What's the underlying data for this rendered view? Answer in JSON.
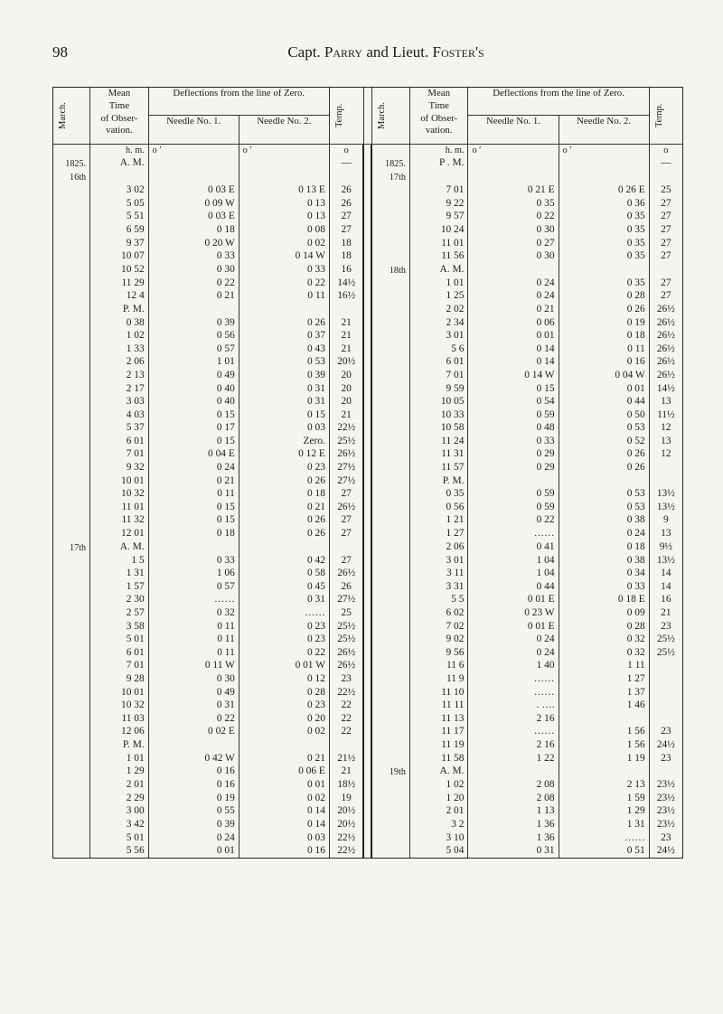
{
  "page_number": "98",
  "running_head": "Capt. PARRY and Lieut. FOSTER's",
  "headers": {
    "march": "March.",
    "mean_time": [
      "Mean",
      "Time",
      "of Obser-",
      "vation."
    ],
    "deflections": "Deflections from the line of Zero.",
    "needle1": "Needle No. 1.",
    "needle2": "Needle No. 2.",
    "temp": "Temp."
  },
  "unit_row": {
    "hm": "h. m.",
    "deg": "o ′",
    "t": "o"
  },
  "left": [
    {
      "march": "1825.",
      "time": "A. M.",
      "n1": "",
      "n2": "",
      "t": "—"
    },
    {
      "march": "16th",
      "time": "",
      "n1": "",
      "n2": "",
      "t": ""
    },
    {
      "time": "3 02",
      "n1": "0 03 E",
      "n2": "0 13 E",
      "t": "26"
    },
    {
      "time": "5 05",
      "n1": "0 09 W",
      "n2": "0 13",
      "t": "26"
    },
    {
      "time": "5 51",
      "n1": "0 03 E",
      "n2": "0 13",
      "t": "27"
    },
    {
      "time": "6 59",
      "n1": "0 18",
      "n2": "0 08",
      "t": "27"
    },
    {
      "time": "9 37",
      "n1": "0 20 W",
      "n2": "0 02",
      "t": "18"
    },
    {
      "time": "10 07",
      "n1": "0 33",
      "n2": "0 14 W",
      "t": "18"
    },
    {
      "time": "10 52",
      "n1": "0 30",
      "n2": "0 33",
      "t": "16"
    },
    {
      "time": "11 29",
      "n1": "0 22",
      "n2": "0 22",
      "t": "14½"
    },
    {
      "time": "12  4",
      "n1": "0 21",
      "n2": "0 11",
      "t": "16½"
    },
    {
      "time": "P. M.",
      "n1": "",
      "n2": "",
      "t": ""
    },
    {
      "time": "0 38",
      "n1": "0 39",
      "n2": "0 26",
      "t": "21"
    },
    {
      "time": "1 02",
      "n1": "0 56",
      "n2": "0 37",
      "t": "21"
    },
    {
      "time": "1 33",
      "n1": "0 57",
      "n2": "0 43",
      "t": "21"
    },
    {
      "time": "2 06",
      "n1": "1 01",
      "n2": "0 53",
      "t": "20½"
    },
    {
      "time": "2 13",
      "n1": "0 49",
      "n2": "0 39",
      "t": "20"
    },
    {
      "time": "2 17",
      "n1": "0 40",
      "n2": "0 31",
      "t": "20"
    },
    {
      "time": "3 03",
      "n1": "0 40",
      "n2": "0 31",
      "t": "20"
    },
    {
      "time": "4 03",
      "n1": "0 15",
      "n2": "0 15",
      "t": "21"
    },
    {
      "time": "5 37",
      "n1": "0 17",
      "n2": "0 03",
      "t": "22½"
    },
    {
      "time": "6 01",
      "n1": "0 15",
      "n2": "Zero.",
      "t": "25½"
    },
    {
      "time": "7 01",
      "n1": "0 04 E",
      "n2": "0 12 E",
      "t": "26½"
    },
    {
      "time": "9 32",
      "n1": "0 24",
      "n2": "0 23",
      "t": "27½"
    },
    {
      "time": "10 01",
      "n1": "0 21",
      "n2": "0 26",
      "t": "27½"
    },
    {
      "time": "10 32",
      "n1": "0 11",
      "n2": "0 18",
      "t": "27"
    },
    {
      "time": "11 01",
      "n1": "0 15",
      "n2": "0 21",
      "t": "26½"
    },
    {
      "time": "11 32",
      "n1": "0 15",
      "n2": "0 26",
      "t": "27"
    },
    {
      "time": "12 01",
      "n1": "0 18",
      "n2": "0 26",
      "t": "27"
    },
    {
      "march": "17th",
      "time": "A. M.",
      "n1": "",
      "n2": "",
      "t": ""
    },
    {
      "time": "1  5",
      "n1": "0 33",
      "n2": "0 42",
      "t": "27"
    },
    {
      "time": "1 31",
      "n1": "1 06",
      "n2": "0 58",
      "t": "26½"
    },
    {
      "time": "1 57",
      "n1": "0 57",
      "n2": "0 45",
      "t": "26"
    },
    {
      "time": "2 30",
      "n1": "……",
      "n2": "0 31",
      "t": "27½"
    },
    {
      "time": "2 57",
      "n1": "0 32",
      "n2": "……",
      "t": "25"
    },
    {
      "time": "3 58",
      "n1": "0 11",
      "n2": "0 23",
      "t": "25½"
    },
    {
      "time": "5 01",
      "n1": "0 11",
      "n2": "0 23",
      "t": "25½"
    },
    {
      "time": "6 01",
      "n1": "0 11",
      "n2": "0 22",
      "t": "26½"
    },
    {
      "time": "7 01",
      "n1": "0 11 W",
      "n2": "0 01 W",
      "t": "26½"
    },
    {
      "time": "9 28",
      "n1": "0 30",
      "n2": "0 12",
      "t": "23"
    },
    {
      "time": "10 01",
      "n1": "0 49",
      "n2": "0 28",
      "t": "22½"
    },
    {
      "time": "10 32",
      "n1": "0 31",
      "n2": "0 23",
      "t": "22"
    },
    {
      "time": "11 03",
      "n1": "0 22",
      "n2": "0 20",
      "t": "22"
    },
    {
      "time": "12 06",
      "n1": "0 02 E",
      "n2": "0 02",
      "t": "22"
    },
    {
      "time": "P. M.",
      "n1": "",
      "n2": "",
      "t": ""
    },
    {
      "time": "1 01",
      "n1": "0 42 W",
      "n2": "0 21",
      "t": "21½"
    },
    {
      "time": "1 29",
      "n1": "0 16",
      "n2": "0 06 E",
      "t": "21"
    },
    {
      "time": "2 01",
      "n1": "0 16",
      "n2": "0 01",
      "t": "18½"
    },
    {
      "time": "2 29",
      "n1": "0 19",
      "n2": "0 02",
      "t": "19"
    },
    {
      "time": "3 00",
      "n1": "0 55",
      "n2": "0 14",
      "t": "20½"
    },
    {
      "time": "3 42",
      "n1": "0 39",
      "n2": "0 14",
      "t": "20½"
    },
    {
      "time": "5 01",
      "n1": "0 24",
      "n2": "0 03",
      "t": "22½"
    },
    {
      "time": "5 56",
      "n1": "0 01",
      "n2": "0 16",
      "t": "22½"
    }
  ],
  "right": [
    {
      "march": "1825.",
      "time": "P . M.",
      "n1": "",
      "n2": "",
      "t": "—"
    },
    {
      "march": "17th",
      "time": "",
      "n1": "",
      "n2": "",
      "t": ""
    },
    {
      "time": "7 01",
      "n1": "0 21 E",
      "n2": "0 26 E",
      "t": "25"
    },
    {
      "time": "9 22",
      "n1": "0 35",
      "n2": "0 36",
      "t": "27"
    },
    {
      "time": "9 57",
      "n1": "0 22",
      "n2": "0 35",
      "t": "27"
    },
    {
      "time": "10 24",
      "n1": "0 30",
      "n2": "0 35",
      "t": "27"
    },
    {
      "time": "11 01",
      "n1": "0 27",
      "n2": "0 35",
      "t": "27"
    },
    {
      "time": "11 56",
      "n1": "0 30",
      "n2": "0 35",
      "t": "27"
    },
    {
      "march": "18th",
      "time": "A. M.",
      "n1": "",
      "n2": "",
      "t": ""
    },
    {
      "time": "1 01",
      "n1": "0 24",
      "n2": "0 35",
      "t": "27"
    },
    {
      "time": "1 25",
      "n1": "0 24",
      "n2": "0 28",
      "t": "27"
    },
    {
      "time": "2 02",
      "n1": "0 21",
      "n2": "0 26",
      "t": "26½"
    },
    {
      "time": "2 34",
      "n1": "0 06",
      "n2": "0 19",
      "t": "26½"
    },
    {
      "time": "3 01",
      "n1": "0 01",
      "n2": "0 18",
      "t": "26½"
    },
    {
      "time": "5  6",
      "n1": "0 14",
      "n2": "0 11",
      "t": "26½"
    },
    {
      "time": "6 01",
      "n1": "0 14",
      "n2": "0 16",
      "t": "26½"
    },
    {
      "time": "7 01",
      "n1": "0 14 W",
      "n2": "0 04 W",
      "t": "26½"
    },
    {
      "time": "9 59",
      "n1": "0 15",
      "n2": "0 01",
      "t": "14½"
    },
    {
      "time": "10 05",
      "n1": "0 54",
      "n2": "0 44",
      "t": "13"
    },
    {
      "time": "10 33",
      "n1": "0 59",
      "n2": "0 50",
      "t": "11½"
    },
    {
      "time": "10 58",
      "n1": "0 48",
      "n2": "0 53",
      "t": "12"
    },
    {
      "time": "11 24",
      "n1": "0 33",
      "n2": "0 52",
      "t": "13"
    },
    {
      "time": "11 31",
      "n1": "0 29",
      "n2": "0 26",
      "t": "12"
    },
    {
      "time": "11 57",
      "n1": "0 29",
      "n2": "0 26",
      "t": ""
    },
    {
      "time": "P. M.",
      "n1": "",
      "n2": "",
      "t": ""
    },
    {
      "time": "0 35",
      "n1": "0 59",
      "n2": "0 53",
      "t": "13½"
    },
    {
      "time": "0 56",
      "n1": "0 59",
      "n2": "0 53",
      "t": "13½"
    },
    {
      "time": "1 21",
      "n1": "0 22",
      "n2": "0 38",
      "t": "9"
    },
    {
      "time": "1 27",
      "n1": "……",
      "n2": "0 24",
      "t": "13"
    },
    {
      "time": "2 06",
      "n1": "0 41",
      "n2": "0 18",
      "t": "9½"
    },
    {
      "time": "3 01",
      "n1": "1 04",
      "n2": "0 38",
      "t": "13½"
    },
    {
      "time": "3 11",
      "n1": "1 04",
      "n2": "0 34",
      "t": "14"
    },
    {
      "time": "3 31",
      "n1": "0 44",
      "n2": "0 33",
      "t": "14"
    },
    {
      "time": "5  5",
      "n1": "0 01 E",
      "n2": "0 18 E",
      "t": "16"
    },
    {
      "time": "6 02",
      "n1": "0 23 W",
      "n2": "0 09",
      "t": "21"
    },
    {
      "time": "7 02",
      "n1": "0 01 E",
      "n2": "0 28",
      "t": "23"
    },
    {
      "time": "9 02",
      "n1": "0 24",
      "n2": "0 32",
      "t": "25½"
    },
    {
      "time": "9 56",
      "n1": "0 24",
      "n2": "0 32",
      "t": "25½"
    },
    {
      "time": "11  6",
      "n1": "1 40",
      "n2": "1 11",
      "t": ""
    },
    {
      "time": "11  9",
      "n1": "……",
      "n2": "1 27",
      "t": ""
    },
    {
      "time": "11 10",
      "n1": "……",
      "n2": "1 37",
      "t": ""
    },
    {
      "time": "11 11",
      "n1": ". ….",
      "n2": "1 46",
      "t": ""
    },
    {
      "time": "11 13",
      "n1": "2 16",
      "n2": "",
      "t": ""
    },
    {
      "time": "11 17",
      "n1": "……",
      "n2": "1 56",
      "t": "23"
    },
    {
      "time": "11 19",
      "n1": "2 16",
      "n2": "1 56",
      "t": "24½"
    },
    {
      "time": "11 58",
      "n1": "1 22",
      "n2": "1 19",
      "t": "23"
    },
    {
      "march": "19th",
      "time": "A. M.",
      "n1": "",
      "n2": "",
      "t": ""
    },
    {
      "time": "1 02",
      "n1": "2 08",
      "n2": "2 13",
      "t": "23½"
    },
    {
      "time": "1 20",
      "n1": "2 08",
      "n2": "1 59",
      "t": "23½"
    },
    {
      "time": "2 01",
      "n1": "1 13",
      "n2": "1 29",
      "t": "23½"
    },
    {
      "time": "3  2",
      "n1": "1 36",
      "n2": "1 31",
      "t": "23½"
    },
    {
      "time": "3 10",
      "n1": "1 36",
      "n2": "……",
      "t": "23"
    },
    {
      "time": "5 04",
      "n1": "0 31",
      "n2": "0 51",
      "t": "24½"
    }
  ],
  "colors": {
    "text": "#1a1a1a",
    "paper": "#f5f5f0",
    "rule": "#333333"
  }
}
